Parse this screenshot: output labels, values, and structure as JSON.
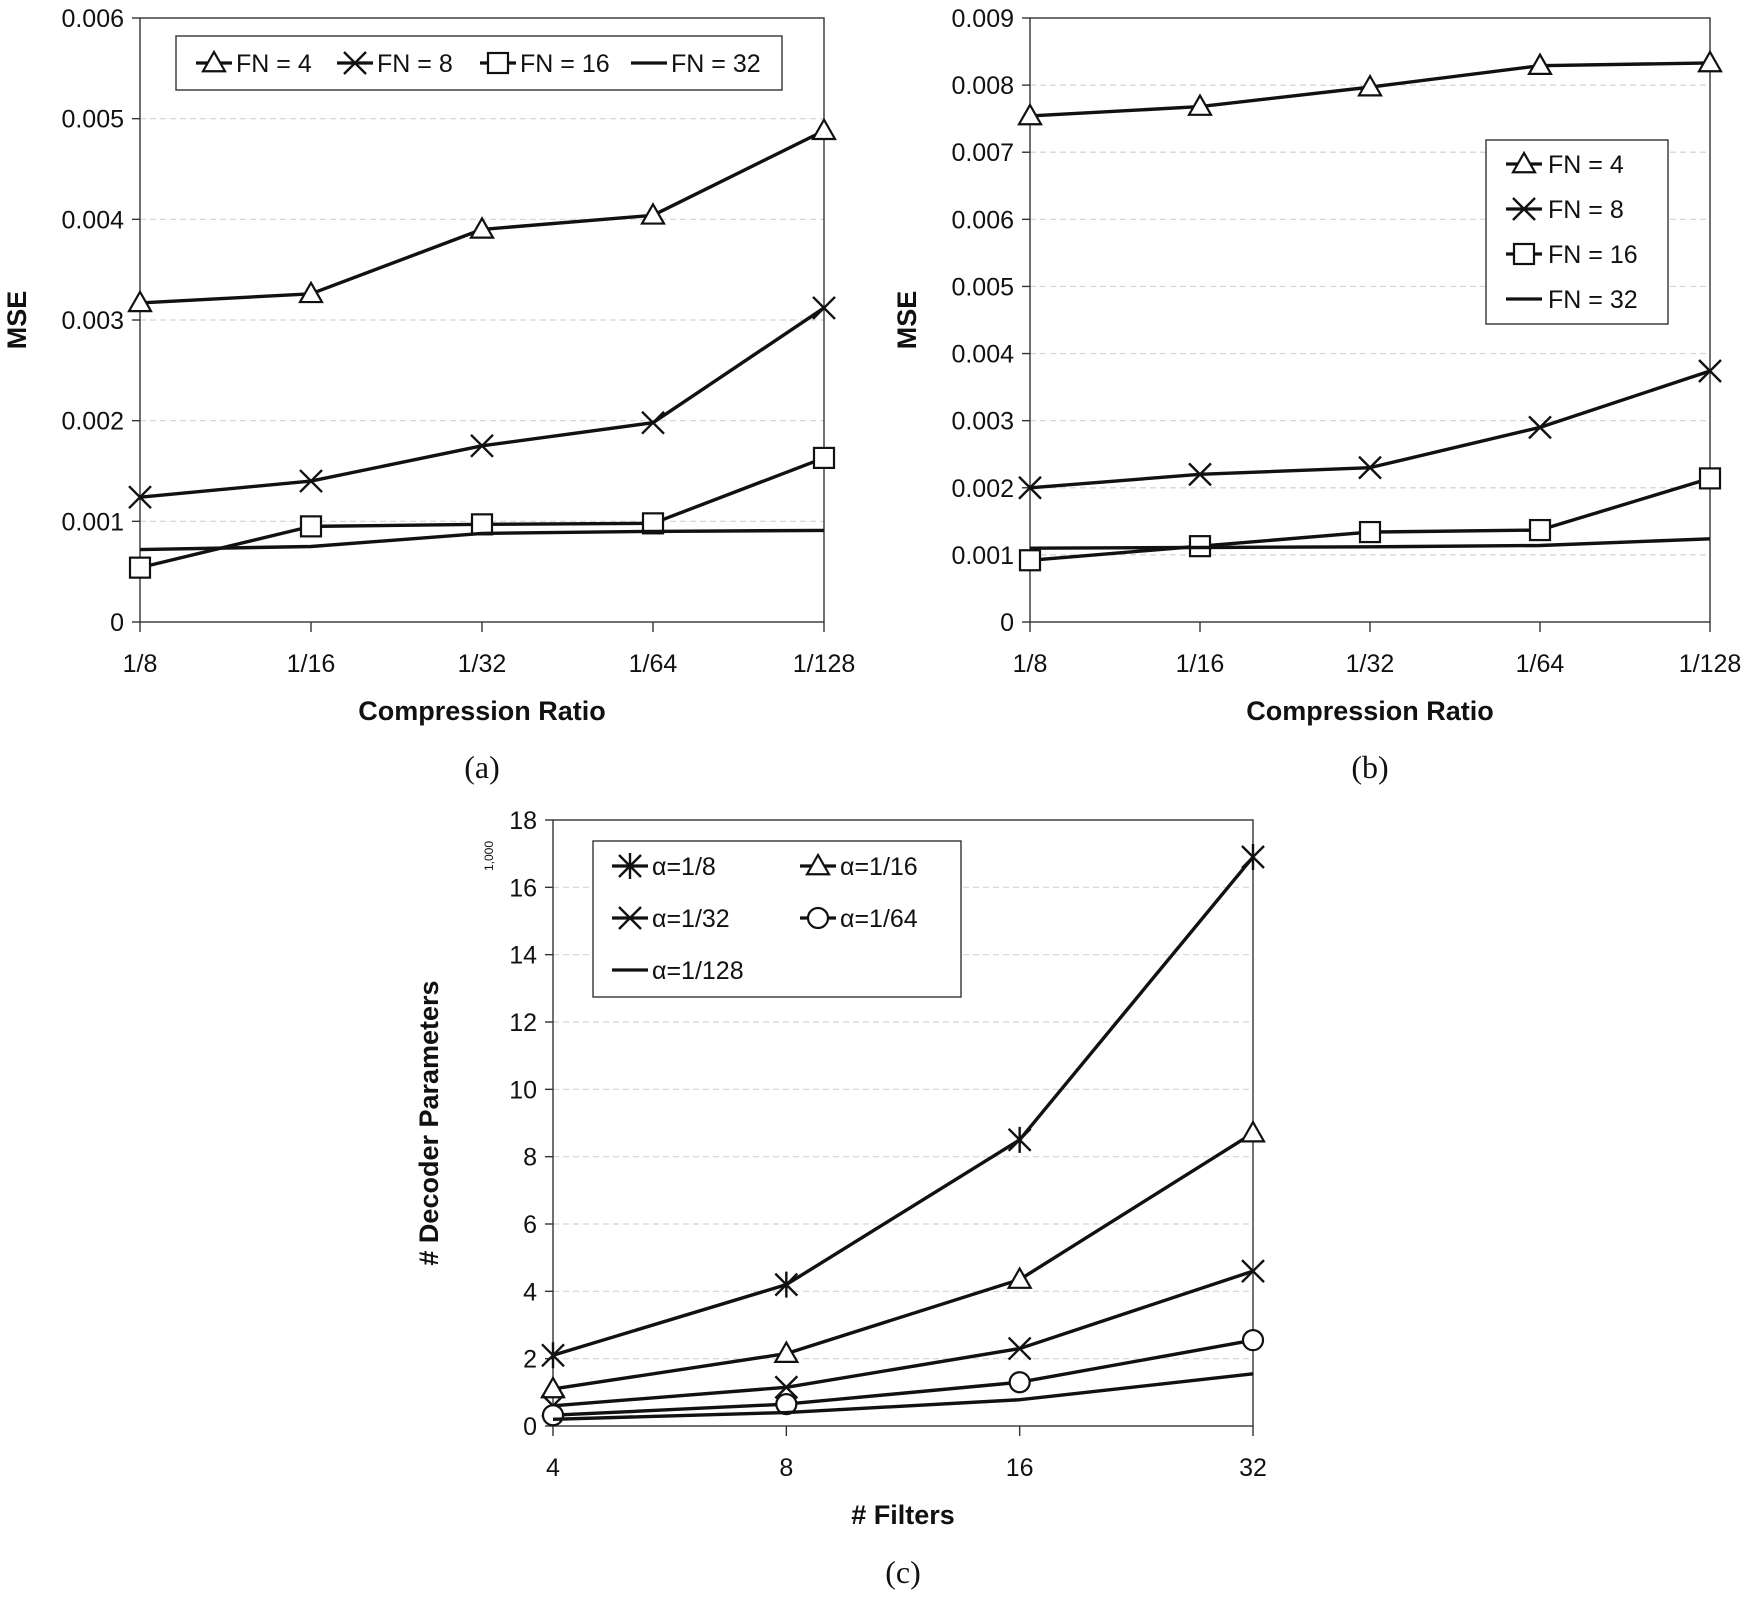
{
  "chart_data": [
    {
      "id": "a",
      "type": "line",
      "caption": "(a)",
      "categories": [
        "1/8",
        "1/16",
        "1/32",
        "1/64",
        "1/128"
      ],
      "xlabel": "Compression Ratio",
      "ylabel": "MSE",
      "ylim": [
        0,
        0.006
      ],
      "yticks": [
        "0",
        "0.001",
        "0.002",
        "0.003",
        "0.004",
        "0.005",
        "0.006"
      ],
      "grid": true,
      "legend": "top, single row",
      "series": [
        {
          "name": "FN = 4",
          "marker": "triangle",
          "values": [
            0.00317,
            0.00326,
            0.0039,
            0.00404,
            0.00488
          ]
        },
        {
          "name": "FN = 8",
          "marker": "x",
          "values": [
            0.00124,
            0.0014,
            0.00175,
            0.00198,
            0.00312
          ]
        },
        {
          "name": "FN = 16",
          "marker": "square",
          "values": [
            0.00054,
            0.00095,
            0.00097,
            0.00098,
            0.00163
          ]
        },
        {
          "name": "FN = 32",
          "marker": "none",
          "values": [
            0.00072,
            0.00075,
            0.00088,
            0.0009,
            0.00091
          ]
        }
      ]
    },
    {
      "id": "b",
      "type": "line",
      "caption": "(b)",
      "categories": [
        "1/8",
        "1/16",
        "1/32",
        "1/64",
        "1/128"
      ],
      "xlabel": "Compression Ratio",
      "ylabel": "MSE",
      "ylim": [
        0,
        0.009
      ],
      "yticks": [
        "0",
        "0.001",
        "0.002",
        "0.003",
        "0.004",
        "0.005",
        "0.006",
        "0.007",
        "0.008",
        "0.009"
      ],
      "grid": true,
      "legend": "right, stacked",
      "series": [
        {
          "name": "FN = 4",
          "marker": "triangle",
          "values": [
            0.00754,
            0.00768,
            0.00797,
            0.00829,
            0.00833
          ]
        },
        {
          "name": "FN = 8",
          "marker": "x",
          "values": [
            0.002,
            0.0022,
            0.0023,
            0.0029,
            0.00374
          ]
        },
        {
          "name": "FN = 16",
          "marker": "square",
          "values": [
            0.00092,
            0.00113,
            0.00134,
            0.00137,
            0.00214
          ]
        },
        {
          "name": "FN = 32",
          "marker": "none",
          "values": [
            0.0011,
            0.00111,
            0.00112,
            0.00114,
            0.00124
          ]
        }
      ]
    },
    {
      "id": "c",
      "type": "line",
      "caption": "(c)",
      "categories": [
        "4",
        "8",
        "16",
        "32"
      ],
      "xlabel": "# Filters",
      "ylabel": "# Decoder Parameters",
      "yunit": "1,000",
      "ylim": [
        0,
        18
      ],
      "yticks": [
        "0",
        "2",
        "4",
        "6",
        "8",
        "10",
        "12",
        "14",
        "16",
        "18"
      ],
      "grid": true,
      "legend": "top-left, two columns",
      "series": [
        {
          "name": "α=1/8",
          "marker": "asterisk",
          "values": [
            2.1,
            4.2,
            8.5,
            16.9
          ]
        },
        {
          "name": "α=1/16",
          "marker": "triangle",
          "values": [
            1.1,
            2.15,
            4.35,
            8.7
          ]
        },
        {
          "name": "α=1/32",
          "marker": "x",
          "values": [
            0.6,
            1.15,
            2.3,
            4.6
          ]
        },
        {
          "name": "α=1/64",
          "marker": "circle",
          "values": [
            0.32,
            0.65,
            1.3,
            2.55
          ]
        },
        {
          "name": "α=1/128",
          "marker": "none",
          "values": [
            0.2,
            0.4,
            0.78,
            1.55
          ]
        }
      ]
    }
  ]
}
